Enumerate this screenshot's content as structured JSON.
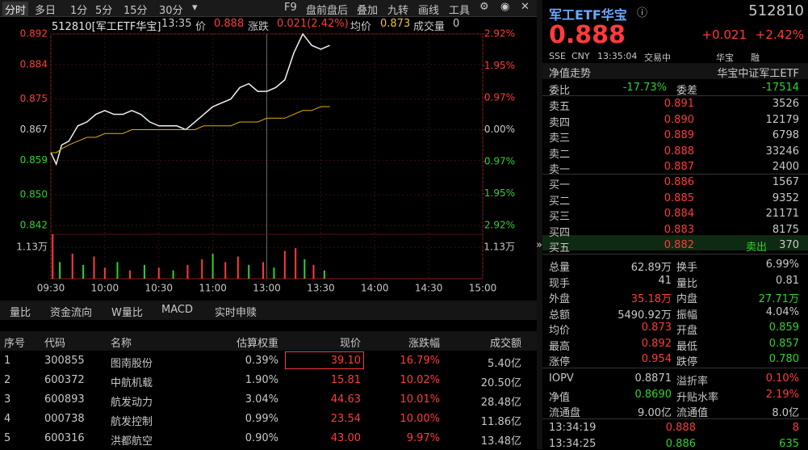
{
  "toolbar": {
    "tabs": [
      "分时",
      "多日",
      "1分",
      "5分",
      "15分",
      "30分"
    ],
    "tools": [
      "F9",
      "盘前盘后",
      "叠加",
      "九转",
      "画线",
      "工具"
    ]
  },
  "info": [
    "512810[军工ETF华宝]",
    "13:35",
    "价",
    "0.888",
    "涨跌",
    "0.021(2.42%)",
    "均价",
    "0.873",
    "成交量",
    "0"
  ],
  "chart_data": {
    "type": "line",
    "x": [
      0,
      3,
      6,
      10,
      15,
      20,
      25,
      30,
      35,
      40,
      45,
      50,
      55,
      60,
      65,
      70,
      75,
      80,
      85,
      90,
      95,
      100,
      105,
      110,
      115,
      120,
      125,
      130,
      135,
      140,
      145,
      150,
      155
    ],
    "series": [
      {
        "color": "#f0f0f0",
        "values": [
          0.861,
          0.858,
          0.863,
          0.864,
          0.868,
          0.869,
          0.871,
          0.872,
          0.871,
          0.871,
          0.872,
          0.871,
          0.869,
          0.868,
          0.868,
          0.868,
          0.867,
          0.869,
          0.871,
          0.873,
          0.874,
          0.875,
          0.878,
          0.879,
          0.877,
          0.877,
          0.878,
          0.88,
          0.887,
          0.892,
          0.889,
          0.888,
          0.889
        ]
      },
      {
        "color": "#e0b000",
        "values": [
          0.861,
          0.861,
          0.862,
          0.863,
          0.864,
          0.865,
          0.865,
          0.866,
          0.866,
          0.866,
          0.867,
          0.867,
          0.867,
          0.867,
          0.867,
          0.867,
          0.867,
          0.867,
          0.868,
          0.868,
          0.868,
          0.868,
          0.869,
          0.869,
          0.869,
          0.87,
          0.87,
          0.87,
          0.871,
          0.872,
          0.872,
          0.873,
          0.873
        ]
      }
    ],
    "xlim": [
      0,
      240
    ],
    "xticks": [
      {
        "value": 0,
        "label": "09:30"
      },
      {
        "value": 30,
        "label": "10:00"
      },
      {
        "value": 60,
        "label": "10:30"
      },
      {
        "value": 90,
        "label": "11:00"
      },
      {
        "value": 120,
        "label": "13:00"
      },
      {
        "value": 150,
        "label": "13:30"
      },
      {
        "value": 180,
        "label": "14:00"
      },
      {
        "value": 210,
        "label": "14:30"
      },
      {
        "value": 240,
        "label": "15:00"
      }
    ],
    "ylim": [
      0.842,
      0.892
    ],
    "yticks": [
      0.892,
      0.884,
      0.875,
      0.867,
      0.859,
      {
        "value": 0.85,
        "label": "0.850"
      },
      0.842
    ],
    "y2lim": [
      -2.92,
      2.92
    ],
    "y2ticks": [
      {
        "value": 2.92,
        "label": "2.92%"
      },
      {
        "value": 1.95,
        "label": "1.95%"
      },
      {
        "value": 0.97,
        "label": "0.97%"
      },
      {
        "value": 0,
        "label": "0.00%"
      },
      {
        "value": -0.97,
        "label": "0.97%"
      },
      {
        "value": -1.95,
        "label": "1.95%"
      },
      {
        "value": -2.92,
        "label": "2.92%"
      }
    ],
    "volume": {
      "x": [
        1,
        5,
        12,
        18,
        24,
        30,
        37,
        44,
        52,
        60,
        68,
        76,
        84,
        90,
        97,
        104,
        110,
        118,
        124,
        130,
        136,
        141,
        146,
        152
      ],
      "values": [
        1.6,
        0.6,
        0.9,
        0.5,
        0.8,
        0.4,
        0.6,
        0.3,
        0.5,
        0.4,
        0.3,
        0.5,
        0.7,
        0.9,
        0.6,
        0.8,
        0.5,
        0.6,
        0.4,
        1.0,
        1.1,
        0.7,
        0.5,
        0.3
      ],
      "colors": [
        "#ff3b3b",
        "#2fd22f",
        "#ff3b3b",
        "#2fd22f",
        "#ff3b3b",
        "#ff3b3b",
        "#2fd22f",
        "#ff3b3b",
        "#2fd22f",
        "#ff3b3b",
        "#2fd22f",
        "#ff3b3b",
        "#ff3b3b",
        "#2fd22f",
        "#ff3b3b",
        "#ff3b3b",
        "#2fd22f",
        "#ff3b3b",
        "#2fd22f",
        "#ff3b3b",
        "#ff3b3b",
        "#2fd22f",
        "#ff3b3b",
        "#2fd22f"
      ],
      "ylim": [
        0,
        1.6
      ],
      "yticks": [
        {
          "value": 1.13,
          "label": "1.13万"
        }
      ]
    }
  },
  "tabs": [
    "量比",
    "资金流向",
    "W量比",
    "MACD",
    "实时申赎"
  ],
  "table": {
    "headers": [
      "序号",
      "代码",
      "名称",
      "估算权重",
      "现价",
      "涨跌幅",
      "成交额"
    ],
    "rows": [
      [
        "1",
        "300855",
        "图南股份",
        "0.39%",
        "39.10",
        "16.79%",
        "5.40亿"
      ],
      [
        "2",
        "600372",
        "中航机载",
        "1.90%",
        "15.81",
        "10.02%",
        "20.50亿"
      ],
      [
        "3",
        "600893",
        "航发动力",
        "3.04%",
        "44.63",
        "10.01%",
        "28.48亿"
      ],
      [
        "4",
        "000738",
        "航发控制",
        "0.99%",
        "23.54",
        "10.00%",
        "11.86亿"
      ],
      [
        "5",
        "600316",
        "洪都航空",
        "0.90%",
        "43.00",
        "9.97%",
        "13.48亿"
      ]
    ]
  },
  "quote": {
    "name": "军工ETF华宝",
    "code": "512810",
    "price": "0.888",
    "change": "+0.021",
    "pct": "+2.42%",
    "meta": [
      "SSE",
      "CNY",
      "13:35:04",
      "交易中"
    ],
    "badges": [
      "华宝",
      "融"
    ]
  },
  "nav": {
    "label": "净值走势",
    "index": "华宝中证军工ETF"
  },
  "commission": [
    "委比",
    "-17.73%",
    "委差",
    "-17514"
  ],
  "asks": [
    [
      "卖五",
      "0.891",
      "3526"
    ],
    [
      "卖四",
      "0.890",
      "12179"
    ],
    [
      "卖三",
      "0.889",
      "6798"
    ],
    [
      "卖二",
      "0.888",
      "33246"
    ],
    [
      "卖一",
      "0.887",
      "2400"
    ]
  ],
  "bids": [
    [
      "买一",
      "0.886",
      "1567"
    ],
    [
      "买二",
      "0.885",
      "9352"
    ],
    [
      "买三",
      "0.884",
      "21171"
    ],
    [
      "买四",
      "0.883",
      "8175"
    ],
    [
      "买五",
      "0.882",
      "370"
    ]
  ],
  "bid_tag": "卖出",
  "stats": [
    [
      "总量",
      "62.89万",
      "换手",
      "6.99%"
    ],
    [
      "现手",
      "41",
      "量比",
      "0.81"
    ],
    [
      "外盘",
      "35.18万",
      "内盘",
      "27.71万"
    ],
    [
      "总额",
      "5490.92万",
      "振幅",
      "4.04%"
    ],
    [
      "均价",
      "0.873",
      "开盘",
      "0.859"
    ],
    [
      "最高",
      "0.892",
      "最低",
      "0.857"
    ],
    [
      "涨停",
      "0.954",
      "跌停",
      "0.780"
    ],
    [
      "IOPV",
      "0.8871",
      "溢折率",
      "0.10%"
    ],
    [
      "净值",
      "0.8690",
      "升贴水率",
      "2.19%"
    ],
    [
      "流通盘",
      "9.00亿",
      "流通值",
      "8.0亿"
    ]
  ],
  "trades": [
    [
      "13:34:19",
      "0.888",
      "8"
    ],
    [
      "13:34:25",
      "0.886",
      "635"
    ]
  ]
}
